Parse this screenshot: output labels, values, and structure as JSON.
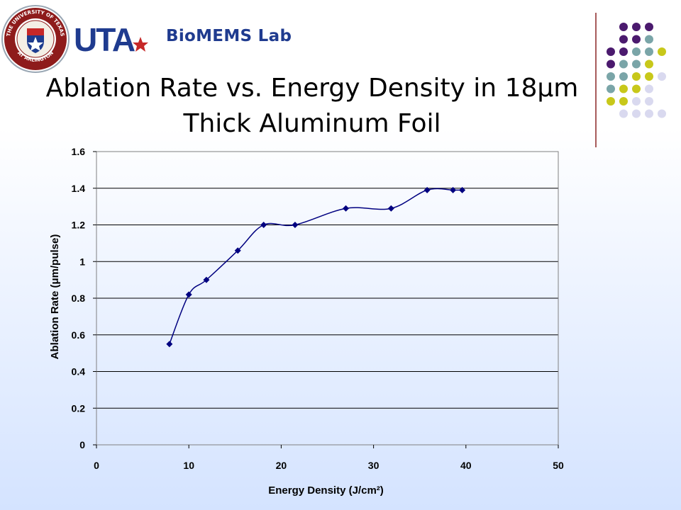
{
  "header": {
    "lab_name": "BioMEMS Lab",
    "logo_text": "UTA",
    "seal_text_top": "THE UNIVERSITY OF TEXAS",
    "seal_text_bottom": "AT ARLINGTON"
  },
  "slide": {
    "title_line1": "Ablation Rate vs. Energy Density in 18μm",
    "title_line2": "Thick Aluminum Foil"
  },
  "colors": {
    "series": "#000080",
    "dots_palette": [
      "#4b1a6e",
      "#7aa5a8",
      "#c8c81a",
      "#d9d9ef"
    ]
  },
  "chart_data": {
    "type": "line",
    "xlabel": "Energy Density (J/cm²)",
    "ylabel": "Ablation Rate (μm/pulse)",
    "xlim": [
      0,
      50
    ],
    "ylim": [
      0,
      1.6
    ],
    "x_ticks": [
      "0",
      "10",
      "20",
      "30",
      "40",
      "50"
    ],
    "y_ticks": [
      "0",
      "0.2",
      "0.4",
      "0.6",
      "0.8",
      "1",
      "1.2",
      "1.4",
      "1.6"
    ],
    "grid": "horizontal",
    "legend": "none",
    "series": [
      {
        "x": [
          7.9,
          10.0,
          11.9,
          15.3,
          18.1,
          21.5,
          27.0,
          31.9,
          35.8,
          38.6,
          39.6
        ],
        "y": [
          0.55,
          0.82,
          0.9,
          1.06,
          1.2,
          1.2,
          1.29,
          1.29,
          1.39,
          1.39,
          1.39
        ]
      }
    ]
  }
}
